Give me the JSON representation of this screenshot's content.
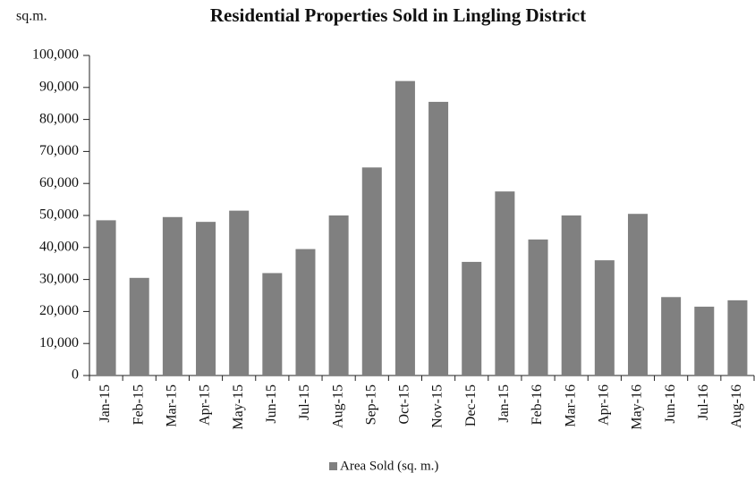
{
  "chart_data": {
    "type": "bar",
    "title": "Residential Properties Sold in Lingling District",
    "y_axis_label": "sq.m.",
    "categories": [
      "Jan-15",
      "Feb-15",
      "Mar-15",
      "Apr-15",
      "May-15",
      "Jun-15",
      "Jul-15",
      "Aug-15",
      "Sep-15",
      "Oct-15",
      "Nov-15",
      "Dec-15",
      "Jan-15",
      "Feb-16",
      "Mar-16",
      "Apr-16",
      "May-16",
      "Jun-16",
      "Jul-16",
      "Aug-16"
    ],
    "series": [
      {
        "name": "Area Sold (sq. m.)",
        "color": "#808080",
        "values": [
          48500,
          30500,
          49500,
          48000,
          51500,
          32000,
          39500,
          50000,
          65000,
          92000,
          85500,
          35500,
          57500,
          42500,
          50000,
          36000,
          50500,
          24500,
          21500,
          23500
        ]
      }
    ],
    "ylim": [
      0,
      100000
    ],
    "yticks": [
      0,
      {
        "value": 10000,
        "label": "10,000"
      },
      {
        "value": 20000,
        "label": "20,000"
      },
      {
        "value": 30000,
        "label": "30,000"
      },
      {
        "value": 40000,
        "label": "40,000"
      },
      {
        "value": 50000,
        "label": "50,000"
      },
      {
        "value": 60000,
        "label": "60,000"
      },
      {
        "value": 70000,
        "label": "70,000"
      },
      {
        "value": 80000,
        "label": "80,000"
      },
      {
        "value": 90000,
        "label": "90,000"
      },
      {
        "value": 100000,
        "label": "100,000"
      }
    ],
    "grid": false,
    "legend": "bottom"
  }
}
